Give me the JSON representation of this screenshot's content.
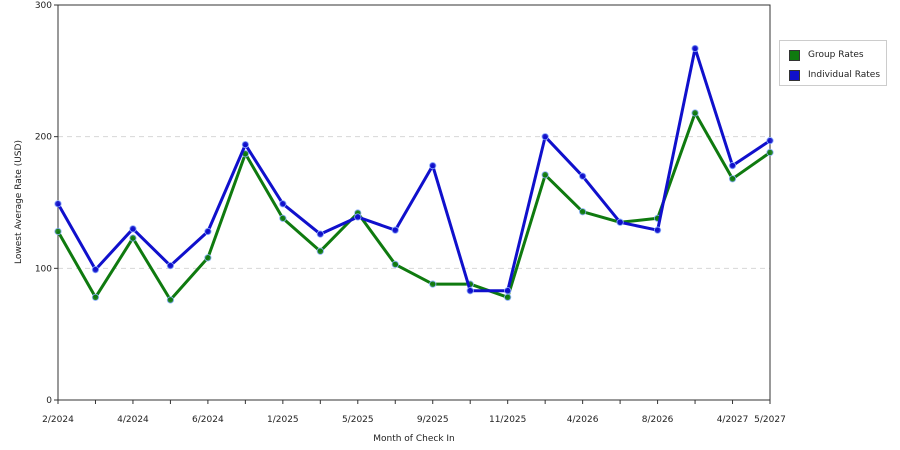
{
  "chart_data": {
    "type": "line",
    "title": "",
    "xlabel": "Month of Check In",
    "ylabel": "Lowest Average Rate (USD)",
    "ylim": [
      0,
      300
    ],
    "yticks": [
      "0",
      "100",
      "200",
      "300"
    ],
    "x_tick_labels": [
      "2/2024",
      "",
      "4/2024",
      "",
      "6/2024",
      "",
      "1/2025",
      "",
      "5/2025",
      "",
      "9/2025",
      "",
      "11/2025",
      "",
      "4/2026",
      "",
      "8/2026",
      "",
      "4/2027",
      "5/2027"
    ],
    "grid": true,
    "legend_position": "right",
    "series": [
      {
        "name": "Group Rates",
        "color": "#0f7a0f",
        "values": [
          128,
          78,
          123,
          76,
          108,
          187,
          138,
          113,
          142,
          103,
          88,
          88,
          78,
          171,
          143,
          135,
          138,
          218,
          168,
          188
        ]
      },
      {
        "name": "Individual Rates",
        "color": "#1010cc",
        "values": [
          149,
          99,
          130,
          102,
          128,
          194,
          149,
          126,
          139,
          129,
          178,
          83,
          83,
          200,
          170,
          135,
          129,
          267,
          178,
          197
        ]
      }
    ]
  }
}
